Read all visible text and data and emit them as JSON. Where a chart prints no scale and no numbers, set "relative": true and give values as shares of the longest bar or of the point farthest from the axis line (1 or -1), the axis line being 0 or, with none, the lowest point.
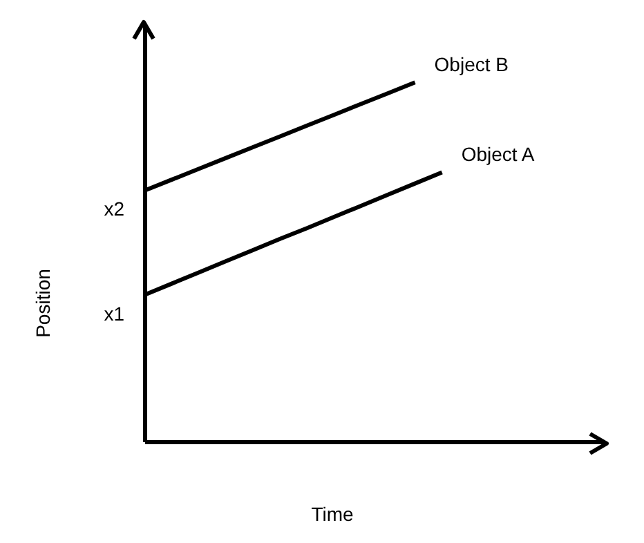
{
  "chart_data": {
    "type": "line",
    "relative": true,
    "xlabel": "Time",
    "ylabel": "Position",
    "legend": false,
    "grid": false,
    "marker": "none",
    "line_style": "solid",
    "categories": [
      null,
      null,
      null,
      null,
      null,
      null,
      null,
      null,
      null,
      null,
      null,
      null,
      null,
      null,
      null,
      null,
      null,
      null
    ],
    "series": [
      {
        "name": "Object B",
        "color": "#000000",
        "values": [
          0.7,
          0.73,
          0.76,
          0.79,
          0.82,
          0.85,
          0.88,
          0.91,
          0.94,
          0.97,
          1.0,
          null,
          null,
          null,
          null,
          null,
          null,
          null
        ]
      },
      {
        "name": "Object A",
        "color": "#000000",
        "values": [
          0.41,
          0.441,
          0.472,
          0.503,
          0.534,
          0.565,
          0.595,
          0.626,
          0.657,
          0.688,
          0.719,
          0.75,
          null,
          null,
          null,
          null,
          null,
          null
        ]
      }
    ],
    "annotations": [
      "x1",
      "x2"
    ]
  }
}
